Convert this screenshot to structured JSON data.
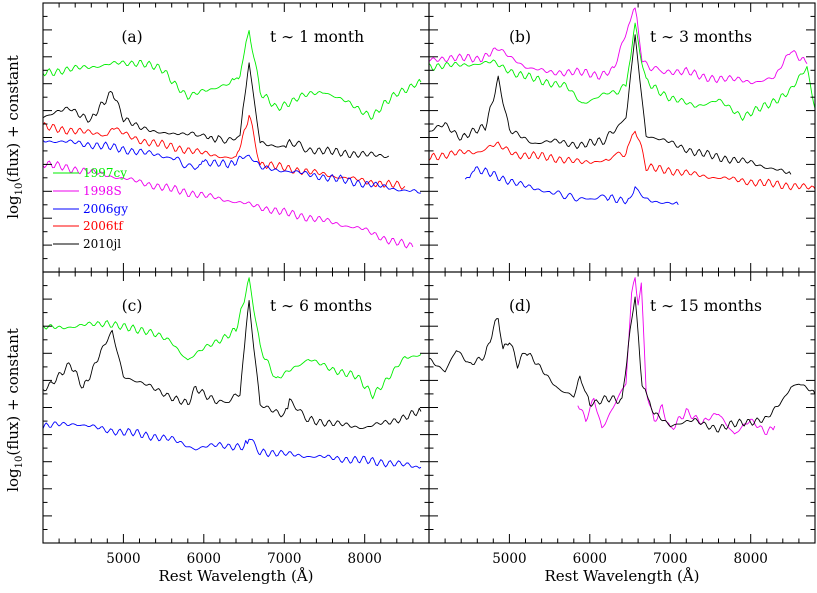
{
  "figure": {
    "y_axis_label_main": "log",
    "y_axis_label_sub": "10",
    "y_axis_label_rest": "(flux) + constant",
    "x_axis_label": "Rest Wavelength (Å)"
  },
  "legend": [
    {
      "name": "1997cy",
      "color": "#00ee00"
    },
    {
      "name": "1998S",
      "color": "#ee00ee"
    },
    {
      "name": "2006gy",
      "color": "#0000ff"
    },
    {
      "name": "2006tf",
      "color": "#ff0000"
    },
    {
      "name": "2010jl",
      "color": "#000000"
    }
  ],
  "chart_data": [
    {
      "type": "line",
      "panel_label": "(a)",
      "epoch": "t ∼ 1 month",
      "xlim": [
        4000,
        8800
      ],
      "xticks": [
        "5000",
        "6000",
        "7000",
        "8000"
      ],
      "tick_values": [
        5000,
        6000,
        7000,
        8000
      ],
      "ylabel": "log10(flux) + constant",
      "series": [
        {
          "name": "1997cy",
          "color": "#00ee00",
          "x": [
            4000,
            4500,
            4900,
            5200,
            5500,
            5800,
            6000,
            6300,
            6450,
            6563,
            6700,
            6900,
            7200,
            7500,
            7800,
            8100,
            8400,
            8700
          ],
          "y": [
            7.55,
            7.75,
            7.9,
            7.95,
            7.65,
            6.6,
            6.9,
            7.1,
            7.5,
            9.2,
            6.8,
            6.2,
            6.65,
            6.85,
            6.4,
            5.9,
            6.8,
            7.2
          ]
        },
        {
          "name": "2010jl",
          "color": "#000000",
          "x": [
            4000,
            4340,
            4600,
            4861,
            5000,
            5200,
            5500,
            5876,
            6200,
            6450,
            6563,
            6700,
            7000,
            7065,
            7300,
            7600,
            8000,
            8300
          ],
          "y": [
            5.9,
            6.2,
            5.75,
            6.9,
            5.85,
            5.45,
            5.3,
            5.25,
            5.0,
            5.1,
            7.95,
            4.9,
            4.75,
            4.95,
            4.65,
            4.55,
            4.45,
            4.4
          ]
        },
        {
          "name": "2006tf",
          "color": "#ff0000",
          "x": [
            4000,
            4400,
            4800,
            4861,
            5200,
            5600,
            6000,
            6400,
            6563,
            6700,
            7000,
            7400,
            7800,
            8200,
            8500
          ],
          "y": [
            5.5,
            5.35,
            5.2,
            5.45,
            5.0,
            4.75,
            4.5,
            4.3,
            5.9,
            4.1,
            3.95,
            3.75,
            3.55,
            3.35,
            3.25
          ]
        },
        {
          "name": "2006gy",
          "color": "#0000ff",
          "x": [
            4000,
            4400,
            4800,
            5200,
            5600,
            5890,
            6000,
            6300,
            6563,
            6700,
            7000,
            7500,
            8000,
            8400,
            8700
          ],
          "y": [
            5.0,
            4.9,
            4.75,
            4.55,
            4.35,
            3.9,
            4.2,
            4.05,
            4.45,
            3.95,
            3.85,
            3.6,
            3.35,
            3.15,
            3.0
          ]
        },
        {
          "name": "1998S",
          "color": "#ee00ee",
          "x": [
            4000,
            4500,
            5000,
            5500,
            6000,
            6500,
            7000,
            7500,
            8000,
            8300,
            8600
          ],
          "y": [
            4.1,
            3.85,
            3.55,
            3.2,
            2.9,
            2.6,
            2.25,
            1.95,
            1.6,
            1.2,
            0.95
          ]
        }
      ]
    },
    {
      "type": "line",
      "panel_label": "(b)",
      "epoch": "t ∼ 3 months",
      "xlim": [
        4000,
        8800
      ],
      "xticks": [],
      "tick_values": [
        5000,
        6000,
        7000,
        8000
      ],
      "series": [
        {
          "name": "1998S",
          "color": "#ee00ee",
          "x": [
            4000,
            4300,
            4600,
            4861,
            5200,
            5500,
            5800,
            6100,
            6300,
            6480,
            6563,
            6650,
            6900,
            7200,
            7400,
            7700,
            8000,
            8300,
            8500,
            8700
          ],
          "y": [
            8.0,
            8.15,
            8.05,
            8.45,
            7.8,
            7.55,
            7.6,
            7.45,
            7.7,
            9.3,
            10.1,
            8.0,
            7.55,
            7.65,
            7.35,
            7.35,
            7.2,
            7.35,
            8.45,
            7.9
          ]
        },
        {
          "name": "1997cy",
          "color": "#00ee00",
          "x": [
            4000,
            4400,
            4800,
            5100,
            5400,
            5700,
            5900,
            6200,
            6450,
            6563,
            6700,
            7000,
            7300,
            7600,
            7900,
            8200,
            8500,
            8700,
            8800
          ],
          "y": [
            7.8,
            7.85,
            7.95,
            7.5,
            7.25,
            7.05,
            6.4,
            6.75,
            7.0,
            9.35,
            7.2,
            6.6,
            6.3,
            6.5,
            5.9,
            6.3,
            6.9,
            7.75,
            6.2
          ]
        },
        {
          "name": "2010jl",
          "color": "#000000",
          "x": [
            4000,
            4200,
            4400,
            4700,
            4861,
            5000,
            5300,
            5600,
            5900,
            6200,
            6450,
            6563,
            6700,
            7000,
            7300,
            7600,
            8000,
            8300,
            8500
          ],
          "y": [
            5.3,
            5.6,
            5.1,
            5.5,
            7.3,
            5.35,
            4.9,
            4.95,
            4.8,
            5.0,
            5.9,
            8.9,
            5.2,
            4.9,
            4.55,
            4.35,
            4.15,
            3.9,
            3.7
          ]
        },
        {
          "name": "2006tf",
          "color": "#ff0000",
          "x": [
            4000,
            4300,
            4600,
            4861,
            5100,
            5500,
            5900,
            6200,
            6450,
            6563,
            6700,
            7000,
            7400,
            7800,
            8200,
            8600,
            8800
          ],
          "y": [
            4.35,
            4.5,
            4.55,
            4.85,
            4.45,
            4.35,
            4.15,
            4.25,
            4.55,
            5.5,
            3.95,
            3.85,
            3.65,
            3.5,
            3.35,
            3.25,
            3.15
          ]
        },
        {
          "name": "2006gy",
          "color": "#0000ff",
          "x": [
            4450,
            4600,
            4800,
            5000,
            5200,
            5500,
            5890,
            6200,
            6500,
            6563,
            6700,
            7000,
            7100
          ],
          "y": [
            3.5,
            3.85,
            3.7,
            3.45,
            3.25,
            3.05,
            2.75,
            2.85,
            2.7,
            3.25,
            2.75,
            2.6,
            2.55
          ]
        }
      ]
    },
    {
      "type": "line",
      "panel_label": "(c)",
      "epoch": "t ∼ 6 months",
      "xlim": [
        4000,
        8800
      ],
      "xticks": [],
      "tick_values": [
        5000,
        6000,
        7000,
        8000
      ],
      "ylabel": "log10(flux) + constant",
      "series": [
        {
          "name": "1997cy",
          "color": "#00ee00",
          "x": [
            4000,
            4400,
            4800,
            5000,
            5300,
            5600,
            5800,
            6100,
            6400,
            6563,
            6700,
            6900,
            7100,
            7300,
            7600,
            7900,
            8100,
            8300,
            8500,
            8700
          ],
          "y": [
            8.1,
            8.15,
            8.3,
            8.1,
            8.0,
            7.55,
            6.9,
            7.5,
            8.0,
            9.9,
            7.4,
            6.1,
            6.6,
            6.9,
            6.55,
            6.25,
            5.6,
            6.2,
            7.0,
            7.1
          ]
        },
        {
          "name": "2010jl",
          "color": "#000000",
          "x": [
            4000,
            4340,
            4500,
            4861,
            5000,
            5200,
            5500,
            5800,
            5900,
            6200,
            6450,
            6563,
            6700,
            7000,
            7065,
            7300,
            7600,
            8000,
            8300,
            8700
          ],
          "y": [
            5.75,
            6.7,
            5.85,
            8.0,
            6.3,
            6.05,
            5.65,
            5.2,
            5.85,
            5.25,
            5.6,
            9.1,
            5.15,
            4.85,
            5.35,
            4.65,
            4.5,
            4.35,
            4.55,
            4.95
          ]
        },
        {
          "name": "2006gy",
          "color": "#0000ff",
          "x": [
            4000,
            4400,
            4800,
            5200,
            5600,
            5900,
            6200,
            6500,
            6563,
            6700,
            7000,
            7400,
            7800,
            8200,
            8600,
            8700
          ],
          "y": [
            4.4,
            4.5,
            4.25,
            4.1,
            3.9,
            3.55,
            3.7,
            3.6,
            3.95,
            3.45,
            3.35,
            3.25,
            3.15,
            3.05,
            2.9,
            2.85
          ]
        }
      ]
    },
    {
      "type": "line",
      "panel_label": "(d)",
      "epoch": "t ∼ 15 months",
      "xlim": [
        4000,
        8800
      ],
      "xticks": [
        "5000",
        "6000",
        "7000",
        "8000"
      ],
      "tick_values": [
        5000,
        6000,
        7000,
        8000
      ],
      "series": [
        {
          "name": "1998S",
          "color": "#ee00ee",
          "x": [
            5850,
            5950,
            6050,
            6150,
            6250,
            6350,
            6450,
            6520,
            6563,
            6600,
            6640,
            6700,
            6800,
            6900,
            7000,
            7200,
            7400,
            7600,
            7800,
            8000,
            8200,
            8300
          ],
          "y": [
            5.3,
            4.6,
            5.4,
            4.3,
            4.9,
            5.5,
            6.0,
            9.4,
            10.0,
            9.0,
            9.8,
            5.8,
            4.6,
            5.1,
            4.2,
            5.0,
            4.5,
            4.9,
            4.1,
            4.6,
            4.2,
            4.4
          ]
        },
        {
          "name": "2010jl",
          "color": "#000000",
          "x": [
            4000,
            4200,
            4340,
            4500,
            4700,
            4861,
            4920,
            5000,
            5100,
            5200,
            5400,
            5600,
            5800,
            5876,
            6000,
            6200,
            6400,
            6480,
            6563,
            6650,
            6800,
            7000,
            7300,
            7600,
            7900,
            8200,
            8400,
            8500,
            8600,
            8800
          ],
          "y": [
            6.9,
            6.5,
            7.25,
            6.7,
            7.1,
            8.55,
            7.2,
            7.65,
            6.75,
            7.25,
            6.5,
            5.85,
            5.5,
            6.25,
            5.25,
            5.45,
            5.3,
            7.5,
            9.3,
            5.9,
            4.85,
            4.45,
            4.6,
            4.3,
            4.55,
            4.65,
            5.4,
            5.9,
            6.0,
            5.6
          ]
        }
      ]
    }
  ]
}
